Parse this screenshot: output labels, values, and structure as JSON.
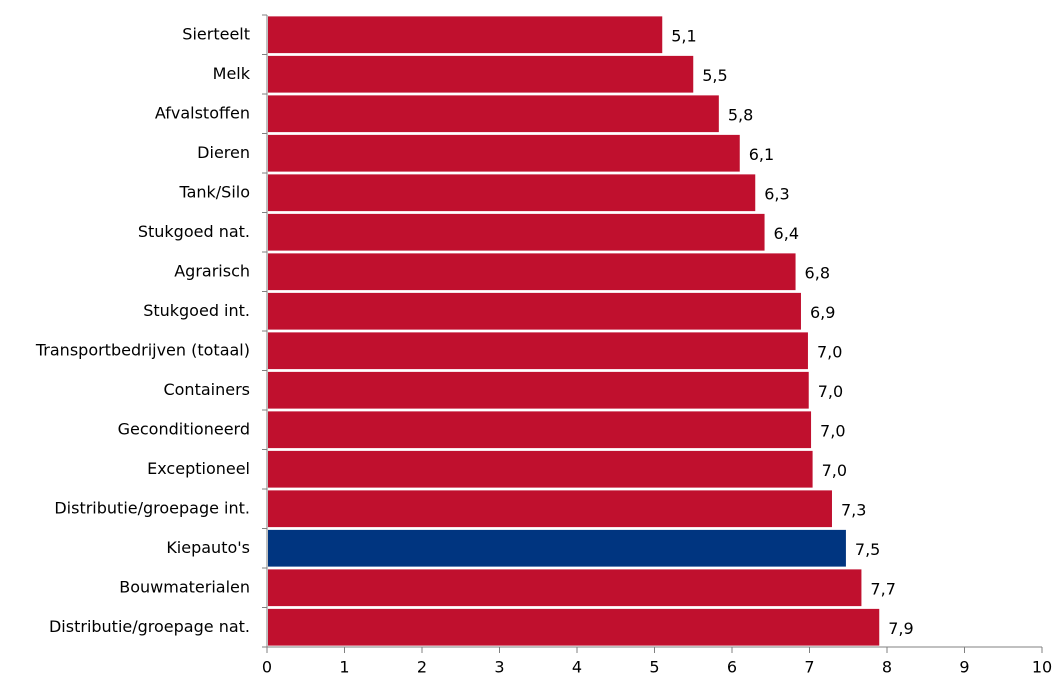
{
  "chart_data": {
    "type": "bar",
    "orientation": "horizontal",
    "title": "",
    "xlabel": "",
    "ylabel": "",
    "xlim": [
      0,
      10
    ],
    "x_ticks": [
      "0",
      "1",
      "2",
      "3",
      "4",
      "5",
      "6",
      "7",
      "8",
      "9",
      "10"
    ],
    "grid": false,
    "categories": [
      "Sierteelt",
      "Melk",
      "Afvalstoffen",
      "Dieren",
      "Tank/Silo",
      "Stukgoed nat.",
      "Agrarisch",
      "Stukgoed int.",
      "Transportbedrijven (totaal)",
      "Containers",
      "Geconditioneerd",
      "Exceptioneel",
      "Distributie/groepage int.",
      "Kiepauto's",
      "Bouwmaterialen",
      "Distributie/groepage nat."
    ],
    "values": [
      5.1,
      5.5,
      5.83,
      6.1,
      6.3,
      6.42,
      6.82,
      6.89,
      6.98,
      6.99,
      7.02,
      7.04,
      7.29,
      7.47,
      7.67,
      7.9
    ],
    "value_labels": [
      "5,1",
      "5,5",
      "5,8",
      "6,1",
      "6,3",
      "6,4",
      "6,8",
      "6,9",
      "7,0",
      "7,0",
      "7,0",
      "7,0",
      "7,3",
      "7,5",
      "7,7",
      "7,9"
    ],
    "colors": {
      "default_bar": "#C0102E",
      "highlight_bar": "#003580",
      "axis": "#808080"
    },
    "highlight_category": "Kiepauto's"
  }
}
